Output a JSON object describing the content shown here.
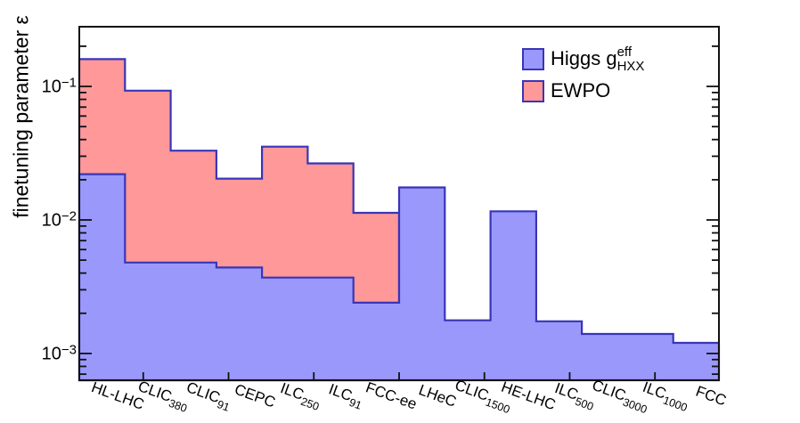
{
  "chart_data": {
    "type": "bar",
    "subtype": "step-histogram-filled",
    "yscale": "log",
    "ylim": [
      0.00063,
      0.28
    ],
    "grid": false,
    "legend_position": "top-right-inside",
    "title": "",
    "xlabel": "",
    "ylabel": "finetuning parameter ε",
    "categories": [
      "HL-LHC",
      "CLIC380",
      "CLIC91",
      "CEPC",
      "ILC250",
      "ILC91",
      "FCC-ee",
      "LHeC",
      "CLIC1500",
      "HE-LHC",
      "ILC500",
      "CLIC3000",
      "ILC1000",
      "FCC"
    ],
    "series": [
      {
        "name": "Higgs g^eff_HXX",
        "fill_color": "#9a99fb",
        "line_color": "#3935b8",
        "values": [
          0.022,
          0.0048,
          0.0048,
          0.0044,
          0.0037,
          0.0037,
          0.0024,
          0.0175,
          0.00177,
          0.0116,
          0.00174,
          0.0014,
          0.0014,
          0.0012
        ]
      },
      {
        "name": "EWPO",
        "fill_color": "#fe9899",
        "line_color": "#3935b8",
        "values": [
          0.16,
          0.093,
          0.033,
          0.0204,
          0.0354,
          0.0265,
          0.0113,
          null,
          null,
          null,
          null,
          null,
          null,
          null
        ]
      }
    ],
    "ytick_labels": [
      "10^-1",
      "10^-2",
      "10^-3"
    ]
  },
  "yaxis": {
    "title": "finetuning parameter ε",
    "ticks": [
      {
        "base": "10",
        "exp": "−1",
        "value": 0.1
      },
      {
        "base": "10",
        "exp": "−2",
        "value": 0.01
      },
      {
        "base": "10",
        "exp": "−3",
        "value": 0.001
      }
    ]
  },
  "xaxis": {
    "labels": [
      {
        "base": "HL-LHC",
        "sub": ""
      },
      {
        "base": "CLIC",
        "sub": "380"
      },
      {
        "base": "CLIC",
        "sub": "91"
      },
      {
        "base": "CEPC",
        "sub": ""
      },
      {
        "base": "ILC",
        "sub": "250"
      },
      {
        "base": "ILC",
        "sub": "91"
      },
      {
        "base": "FCC-ee",
        "sub": ""
      },
      {
        "base": "LHeC",
        "sub": ""
      },
      {
        "base": "CLIC",
        "sub": "1500"
      },
      {
        "base": "HE-LHC",
        "sub": ""
      },
      {
        "base": "ILC",
        "sub": "500"
      },
      {
        "base": "CLIC",
        "sub": "3000"
      },
      {
        "base": "ILC",
        "sub": "1000"
      },
      {
        "base": "FCC",
        "sub": ""
      }
    ]
  },
  "legend": {
    "entries": [
      {
        "prefix": "Higgs g",
        "sup": "eff",
        "sub": "HXX",
        "color": "#9a99fb"
      },
      {
        "prefix": "EWPO",
        "sup": "",
        "sub": "",
        "color": "#fe9899"
      }
    ]
  },
  "colors": {
    "higgs_fill": "#9a99fb",
    "ewpo_fill": "#fe9899",
    "histogram_line": "#3935b8",
    "axis": "#111111"
  }
}
